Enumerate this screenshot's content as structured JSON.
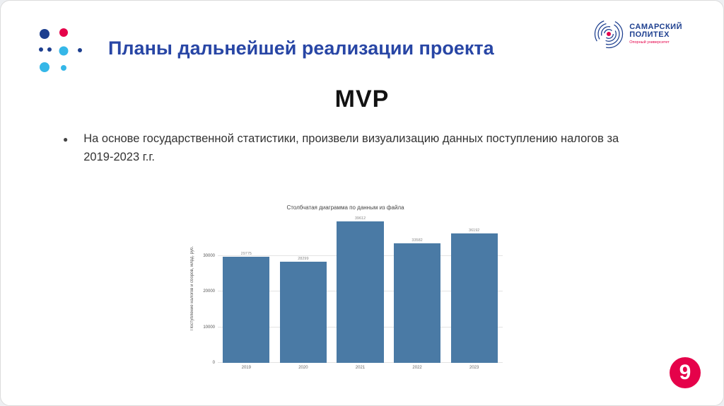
{
  "slide": {
    "title": "Планы дальнейшей реализации проекта",
    "subtitle": "MVP",
    "bullet_marker": "●",
    "bullet_text": "На основе государственной статистики, произвели визуализацию данных поступлению налогов за 2019-2023 г.г.",
    "page_number": "9"
  },
  "logo": {
    "line1": "САМАРСКИЙ",
    "line2": "ПОЛИТЕХ",
    "tagline": "Опорный университет"
  },
  "colors": {
    "title_blue": "#2846a5",
    "navy": "#1d3f8f",
    "accent_red": "#e5024a",
    "accent_cyan": "#35b7e8",
    "bar_blue": "#4a7aa5"
  },
  "chart_data": {
    "type": "bar",
    "title": "Столбчатая диаграмма по данным из файла",
    "categories": [
      "2019",
      "2020",
      "2021",
      "2022",
      "2023"
    ],
    "values": [
      29775,
      28299,
      39612,
      33582,
      36192
    ],
    "value_labels": [
      "29775",
      "28299",
      "39612",
      "33582",
      "36192"
    ],
    "xlabel": "",
    "ylabel": "Поступление налогов и сборов, млрд. руб.",
    "yticks": [
      0,
      10000,
      20000,
      30000
    ],
    "ylim": [
      0,
      42000
    ],
    "grid": true,
    "bar_color": "#4a7aa5",
    "legend": null
  }
}
